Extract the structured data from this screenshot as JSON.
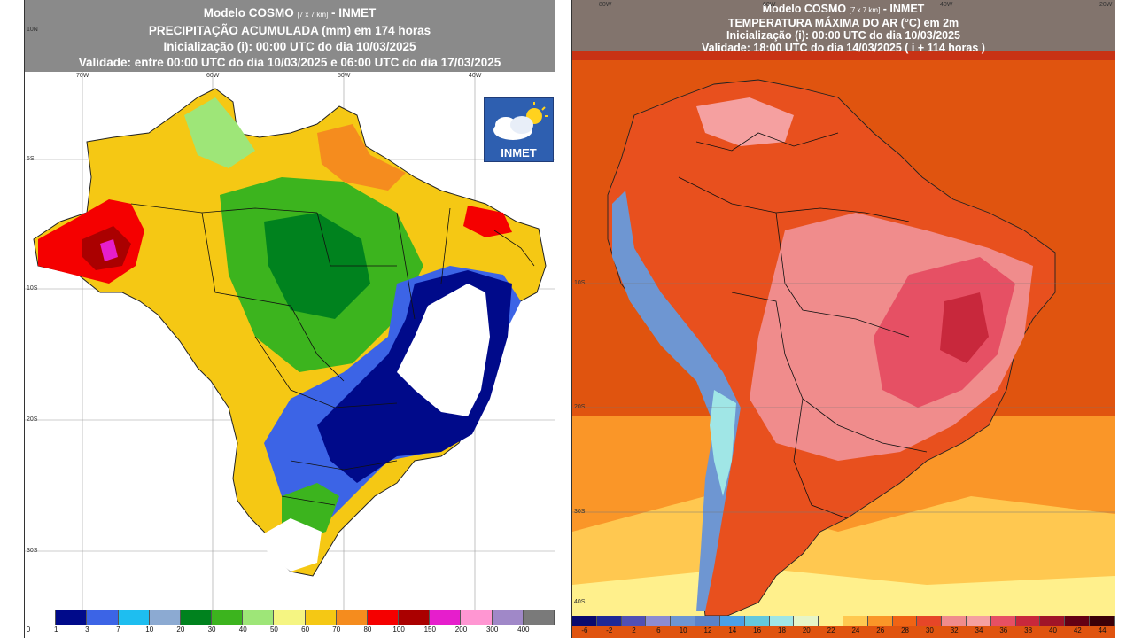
{
  "left_map": {
    "title_line1_main": "Modelo COSMO",
    "title_line1_small": "[7 x 7 km]",
    "title_line1_end": "- INMET",
    "title_line2": "PRECIPITAÇÃO ACUMULADA (mm) em 174 horas",
    "title_line3": "Inicialização (i): 00:00 UTC do dia 10/03/2025",
    "title_line4": "Validade: entre 00:00 UTC do dia 10/03/2025 e 06:00 UTC do dia 17/03/2025",
    "logo_text": "INMET",
    "lon_labels": [
      "70W",
      "60W",
      "50W",
      "40W"
    ],
    "lat_labels": [
      "10N",
      "5S",
      "10S",
      "20S",
      "30S"
    ],
    "legend": {
      "labels": [
        "0",
        "1",
        "3",
        "7",
        "10",
        "20",
        "30",
        "40",
        "50",
        "60",
        "70",
        "80",
        "100",
        "150",
        "200",
        "300",
        "400"
      ],
      "colors": [
        "#ffffff",
        "#000a8a",
        "#3c64e6",
        "#1ebef0",
        "#8caad2",
        "#00821e",
        "#3cb41e",
        "#9ee678",
        "#f5f582",
        "#f5c814",
        "#f58c1e",
        "#f50000",
        "#aa0000",
        "#e61ecc",
        "#ff96d2",
        "#a088c8",
        "#7a7a7a"
      ]
    }
  },
  "right_map": {
    "title_line1_main": "Modelo COSMO",
    "title_line1_small": "[7 x 7 km]",
    "title_line1_end": "- INMET",
    "title_line2": "TEMPERATURA MÁXIMA DO AR (°C) em 2m",
    "title_line3": "Inicialização (i): 00:00 UTC do dia 10/03/2025",
    "title_line4": "Validade: 18:00 UTC do dia 14/03/2025 ( i + 114 horas )",
    "lon_labels": [
      "80W",
      "60W",
      "40W",
      "20W"
    ],
    "lat_labels": [
      "10S",
      "20S",
      "30S",
      "40S"
    ],
    "legend": {
      "labels": [
        "-6",
        "-2",
        "2",
        "6",
        "10",
        "12",
        "14",
        "16",
        "18",
        "20",
        "22",
        "24",
        "26",
        "28",
        "30",
        "32",
        "34",
        "36",
        "38",
        "40",
        "42",
        "44"
      ],
      "colors": [
        "#0a0a6e",
        "#1e2896",
        "#5050b4",
        "#8c8cd2",
        "#6e96d2",
        "#5a82c8",
        "#4ba0e6",
        "#64c8dc",
        "#a0e6e6",
        "#e6f5c8",
        "#fff08c",
        "#ffc850",
        "#fa9628",
        "#f06414",
        "#e64628",
        "#f08c8c",
        "#f5a0a0",
        "#e65064",
        "#c8283c",
        "#a01428",
        "#640014",
        "#3c0008"
      ]
    }
  }
}
